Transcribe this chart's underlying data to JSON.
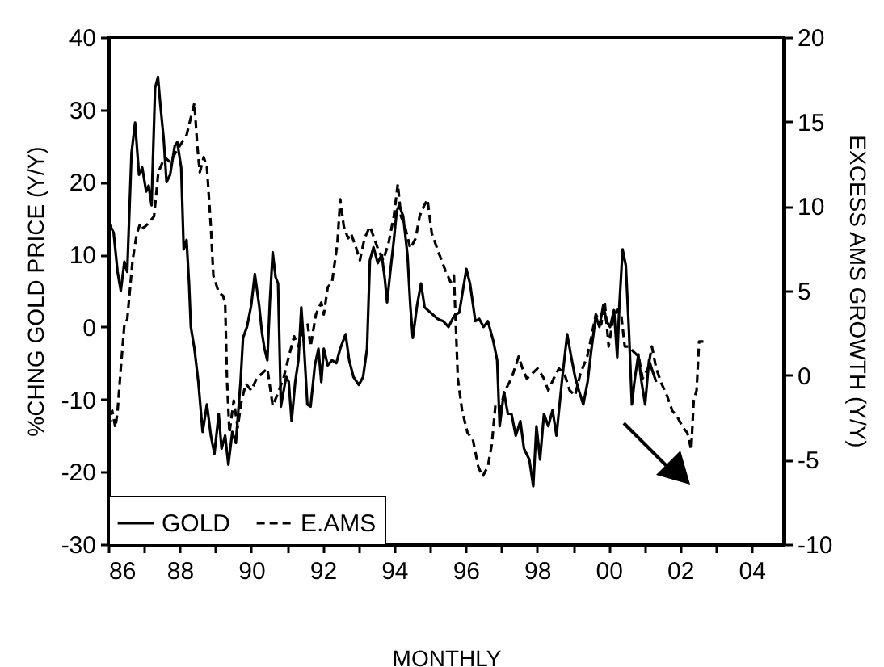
{
  "chart_data": {
    "type": "line",
    "xlabel": "MONTHLY",
    "ylabel": "%CHNG GOLD PRICE (Y/Y)",
    "y2label": "EXCESS AMS GROWTH (Y/Y)",
    "xlim": [
      1986,
      2004.9
    ],
    "ylim": [
      -30,
      40
    ],
    "y2lim": [
      -10,
      20
    ],
    "xticks": [
      {
        "value": 1986,
        "label": "86"
      },
      {
        "value": 1987,
        "label": null
      },
      {
        "value": 1988,
        "label": "88"
      },
      {
        "value": 1989,
        "label": null
      },
      {
        "value": 1990,
        "label": "90"
      },
      {
        "value": 1991,
        "label": null
      },
      {
        "value": 1992,
        "label": "92"
      },
      {
        "value": 1993,
        "label": null
      },
      {
        "value": 1994,
        "label": "94"
      },
      {
        "value": 1995,
        "label": null
      },
      {
        "value": 1996,
        "label": "96"
      },
      {
        "value": 1997,
        "label": null
      },
      {
        "value": 1998,
        "label": "98"
      },
      {
        "value": 1999,
        "label": null
      },
      {
        "value": 2000,
        "label": "00"
      },
      {
        "value": 2001,
        "label": null
      },
      {
        "value": 2002,
        "label": "02"
      },
      {
        "value": 2003,
        "label": null
      },
      {
        "value": 2004,
        "label": "04"
      }
    ],
    "yticks": [
      -30,
      -20,
      -10,
      0,
      10,
      20,
      30,
      40
    ],
    "y2ticks": [
      -10,
      -5,
      0,
      5,
      10,
      15,
      20
    ],
    "grid": false,
    "legend": "bottom left",
    "marker": "none",
    "series": [
      {
        "name": "GOLD",
        "color": "#000000",
        "line_style": "solid",
        "x": [
          1986.0,
          1986.15,
          1986.26,
          1986.35,
          1986.45,
          1986.53,
          1986.65,
          1986.75,
          1986.86,
          1986.95,
          1987.06,
          1987.13,
          1987.21,
          1987.31,
          1987.39,
          1987.46,
          1987.55,
          1987.63,
          1987.73,
          1987.86,
          1987.93,
          1988.04,
          1988.11,
          1988.19,
          1988.26,
          1988.31,
          1988.41,
          1988.52,
          1988.64,
          1988.76,
          1988.87,
          1988.97,
          1989.09,
          1989.17,
          1989.27,
          1989.36,
          1989.47,
          1989.57,
          1989.7,
          1989.77,
          1989.88,
          1990.0,
          1990.1,
          1990.22,
          1990.3,
          1990.37,
          1990.45,
          1990.52,
          1990.6,
          1990.68,
          1990.75,
          1990.83,
          1990.9,
          1990.98,
          1991.05,
          1991.13,
          1991.23,
          1991.32,
          1991.4,
          1991.48,
          1991.57,
          1991.66,
          1991.78,
          1991.88,
          1991.96,
          1992.03,
          1992.14,
          1992.26,
          1992.38,
          1992.49,
          1992.64,
          1992.74,
          1992.86,
          1993.01,
          1993.13,
          1993.24,
          1993.32,
          1993.42,
          1993.54,
          1993.65,
          1993.74,
          1993.8,
          1993.89,
          1993.99,
          1994.07,
          1994.14,
          1994.25,
          1994.37,
          1994.45,
          1994.52,
          1994.64,
          1994.75,
          1994.85,
          1995.22,
          1995.37,
          1995.52,
          1995.67,
          1995.82,
          1996.02,
          1996.12,
          1996.27,
          1996.38,
          1996.5,
          1996.62,
          1996.77,
          1996.88,
          1996.95,
          1997.07,
          1997.18,
          1997.28,
          1997.4,
          1997.53,
          1997.63,
          1997.78,
          1997.89,
          1997.98,
          1998.08,
          1998.19,
          1998.31,
          1998.43,
          1998.54,
          1998.69,
          1998.84,
          1998.94,
          1999.06,
          1999.18,
          1999.29,
          1999.41,
          1999.52,
          1999.64,
          1999.74,
          1999.85,
          1999.94,
          2000.04,
          2000.15,
          2000.24,
          2000.3,
          2000.39,
          2000.48,
          2000.57,
          2000.65,
          2000.72,
          2000.83,
          2000.92,
          2001.02,
          2001.13,
          2001.22,
          2001.33
        ],
        "values": [
          14.5,
          13,
          7.6,
          5,
          9,
          7.6,
          24,
          28.2,
          21,
          22,
          18.7,
          19.5,
          16.8,
          33,
          34.5,
          30.5,
          26,
          20,
          21,
          25,
          25.5,
          22,
          10.7,
          12,
          6,
          0,
          -3,
          -7.6,
          -14.5,
          -10.7,
          -15,
          -17.5,
          -12,
          -16.8,
          -15,
          -19,
          -14.5,
          -16,
          -7.6,
          -1.5,
          0,
          3,
          7.3,
          3,
          -0.8,
          -3,
          -4.6,
          3.4,
          10.3,
          6.9,
          6,
          -11,
          -9,
          -6.9,
          -7.6,
          -13,
          -7.6,
          -4.6,
          2.7,
          -3,
          -10.7,
          -11,
          -5.3,
          -3,
          -7.6,
          -3,
          -5.3,
          -4.6,
          -5,
          -3,
          -1,
          -4.6,
          -6.9,
          -8,
          -6.9,
          -3,
          9.2,
          11,
          8.8,
          10,
          6.5,
          3.4,
          7.6,
          12,
          16,
          16.8,
          15.3,
          10,
          3,
          -1.5,
          3,
          6,
          2.7,
          1.1,
          0.8,
          0,
          1.5,
          2,
          8,
          6,
          0.8,
          1.1,
          0,
          0.8,
          -1.9,
          -4.6,
          -13.7,
          -9,
          -12,
          -12,
          -15,
          -13,
          -16.8,
          -18.3,
          -22,
          -13.7,
          -18.3,
          -12,
          -13.7,
          -11.5,
          -15,
          -7.6,
          -1,
          -3.8,
          -6.9,
          -9,
          -10.7,
          -7.6,
          -3,
          1.5,
          0,
          3,
          0.8,
          0,
          2.3,
          -4.2,
          3,
          10.7,
          8.5,
          -0.8,
          -10.7,
          -7.6,
          -3.8,
          -7.6,
          -10.7,
          -4.6,
          -6,
          -7.6
        ]
      },
      {
        "name": "E.AMS",
        "color": "#000000",
        "line_style": "dashed",
        "axis": "y2",
        "x": [
          1986.0,
          1986.11,
          1986.2,
          1986.26,
          1986.35,
          1986.45,
          1986.53,
          1986.68,
          1986.8,
          1986.9,
          1986.98,
          1987.13,
          1987.28,
          1987.4,
          1987.58,
          1987.73,
          1987.89,
          1988.04,
          1988.19,
          1988.34,
          1988.41,
          1988.49,
          1988.56,
          1988.67,
          1988.76,
          1988.87,
          1988.94,
          1989.09,
          1989.21,
          1989.27,
          1989.32,
          1989.39,
          1989.51,
          1989.62,
          1989.73,
          1989.85,
          1990.0,
          1990.15,
          1990.3,
          1990.45,
          1990.6,
          1990.72,
          1990.9,
          1991.05,
          1991.2,
          1991.32,
          1991.43,
          1991.58,
          1991.66,
          1991.81,
          1991.96,
          1992.03,
          1992.14,
          1992.26,
          1992.41,
          1992.49,
          1992.59,
          1992.71,
          1992.79,
          1992.94,
          1993.04,
          1993.17,
          1993.32,
          1993.44,
          1993.54,
          1993.69,
          1993.84,
          1993.99,
          1994.1,
          1994.19,
          1994.3,
          1994.45,
          1994.6,
          1994.71,
          1994.83,
          1994.93,
          1995.05,
          1995.2,
          1995.43,
          1995.58,
          1995.67,
          1995.78,
          1995.9,
          1996.05,
          1996.2,
          1996.35,
          1996.47,
          1996.62,
          1996.73,
          1996.83,
          1996.95,
          1997.1,
          1997.28,
          1997.48,
          1997.59,
          1997.71,
          1997.86,
          1998.01,
          1998.19,
          1998.31,
          1998.46,
          1998.61,
          1998.76,
          1998.91,
          1999.06,
          1999.21,
          1999.4,
          1999.52,
          1999.64,
          1999.79,
          1999.89,
          2000.0,
          2000.12,
          2000.24,
          2000.35,
          2000.45,
          2000.57,
          2000.69,
          2000.84,
          2000.95,
          2001.1,
          2001.21,
          2001.33,
          2001.48,
          2001.63,
          2001.78,
          2001.93,
          2002.08,
          2002.2,
          2002.31,
          2002.38,
          2002.46,
          2002.53,
          2002.65
        ],
        "values": [
          -3.1,
          -2.1,
          -3.1,
          -2.1,
          0.4,
          3,
          3.3,
          6.8,
          8.4,
          9,
          8.7,
          9,
          9.4,
          12,
          12.9,
          12.6,
          13.2,
          13.7,
          14.2,
          15.5,
          16.1,
          13.6,
          12,
          12.9,
          12.3,
          8.8,
          5.9,
          4.9,
          4.7,
          4.3,
          -0.2,
          -3.4,
          -1.5,
          -3.1,
          -1.5,
          -0.5,
          -0.9,
          -0.2,
          0.1,
          0.4,
          -1.8,
          -1.2,
          -0.2,
          1.1,
          2.3,
          1.7,
          2.7,
          3,
          1.7,
          3.6,
          4.3,
          3.6,
          5.2,
          5.5,
          7.8,
          10.4,
          8.8,
          8.1,
          8.4,
          7.5,
          6.8,
          8.1,
          8.8,
          8.1,
          7.5,
          6.8,
          7.8,
          9.4,
          11.3,
          9.4,
          8.8,
          7.5,
          8.1,
          9.4,
          10,
          10.4,
          8.4,
          7.5,
          6.2,
          5.5,
          5.9,
          -0.2,
          -2.1,
          -3.4,
          -3.8,
          -5.4,
          -6,
          -5.4,
          -4.1,
          -1.8,
          -2.1,
          -0.9,
          -0.2,
          1.1,
          0.4,
          -0.2,
          0.1,
          0.4,
          -0.2,
          -0.9,
          -0.2,
          0.4,
          0.1,
          -0.9,
          -1.2,
          0.1,
          1.1,
          2.3,
          3.6,
          3,
          4.3,
          1.7,
          3.3,
          3.9,
          3.6,
          1.7,
          1.7,
          1.4,
          1.1,
          -0.2,
          0.4,
          1.7,
          0.4,
          -0.5,
          -1.2,
          -2.1,
          -2.5,
          -3.1,
          -3.4,
          -4.4,
          -1.5,
          -0.9,
          2,
          2
        ]
      }
    ]
  }
}
